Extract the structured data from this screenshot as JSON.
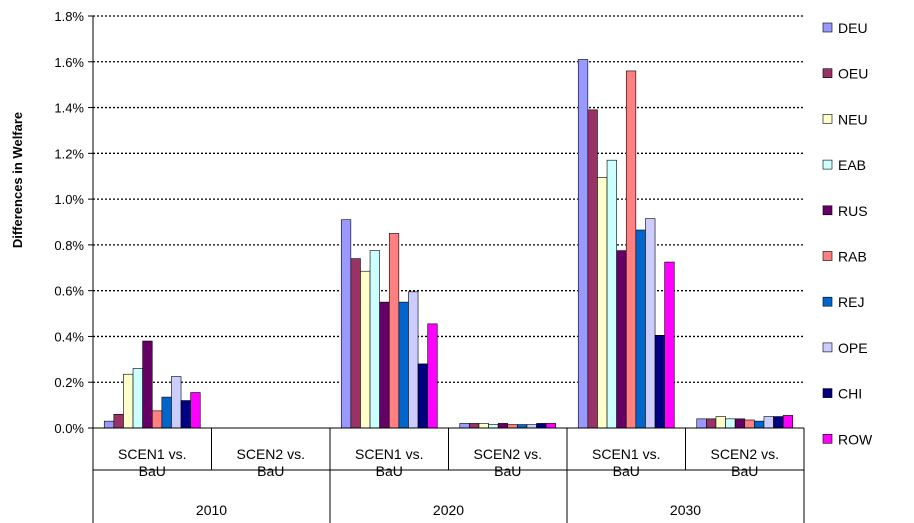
{
  "chart_data": {
    "type": "bar",
    "ylabel": "Differences in Welfare",
    "ylim": [
      0,
      1.8
    ],
    "yticks": [
      "0.0%",
      "0.2%",
      "0.4%",
      "0.6%",
      "0.8%",
      "1.0%",
      "1.2%",
      "1.4%",
      "1.6%",
      "1.8%"
    ],
    "grid": "horizontal dotted",
    "legend_position": "right",
    "groups": [
      {
        "year": "2010",
        "categories": [
          "SCEN1 vs. BaU",
          "SCEN2 vs. BaU"
        ]
      },
      {
        "year": "2020",
        "categories": [
          "SCEN1 vs. BaU",
          "SCEN2 vs. BaU"
        ]
      },
      {
        "year": "2030",
        "categories": [
          "SCEN1 vs. BaU",
          "SCEN2 vs. BaU"
        ]
      }
    ],
    "categories": [
      "2010 SCEN1 vs. BaU",
      "2010 SCEN2 vs. BaU",
      "2020 SCEN1 vs. BaU",
      "2020 SCEN2 vs. BaU",
      "2030 SCEN1 vs. BaU",
      "2030 SCEN2 vs. BaU"
    ],
    "series": [
      {
        "name": "DEU",
        "color": "#9999ff",
        "values": [
          0.03,
          null,
          0.91,
          0.02,
          1.61,
          0.04
        ]
      },
      {
        "name": "OEU",
        "color": "#993366",
        "values": [
          0.06,
          null,
          0.74,
          0.02,
          1.39,
          0.04
        ]
      },
      {
        "name": "NEU",
        "color": "#ffffcc",
        "values": [
          0.235,
          null,
          0.685,
          0.02,
          1.095,
          0.05
        ]
      },
      {
        "name": "EAB",
        "color": "#ccffff",
        "values": [
          0.26,
          null,
          0.775,
          0.015,
          1.17,
          0.04
        ]
      },
      {
        "name": "RUS",
        "color": "#660066",
        "values": [
          0.38,
          null,
          0.55,
          0.02,
          0.775,
          0.04
        ]
      },
      {
        "name": "RAB",
        "color": "#ff8080",
        "values": [
          0.075,
          null,
          0.85,
          0.015,
          1.56,
          0.035
        ]
      },
      {
        "name": "REJ",
        "color": "#0066cc",
        "values": [
          0.135,
          null,
          0.55,
          0.015,
          0.865,
          0.03
        ]
      },
      {
        "name": "OPE",
        "color": "#ccccff",
        "values": [
          0.225,
          null,
          0.595,
          0.015,
          0.915,
          0.05
        ]
      },
      {
        "name": "CHI",
        "color": "#000080",
        "values": [
          0.12,
          null,
          0.28,
          0.02,
          0.405,
          0.05
        ]
      },
      {
        "name": "ROW",
        "color": "#ff00ff",
        "values": [
          0.155,
          null,
          0.455,
          0.02,
          0.725,
          0.055
        ]
      }
    ]
  }
}
